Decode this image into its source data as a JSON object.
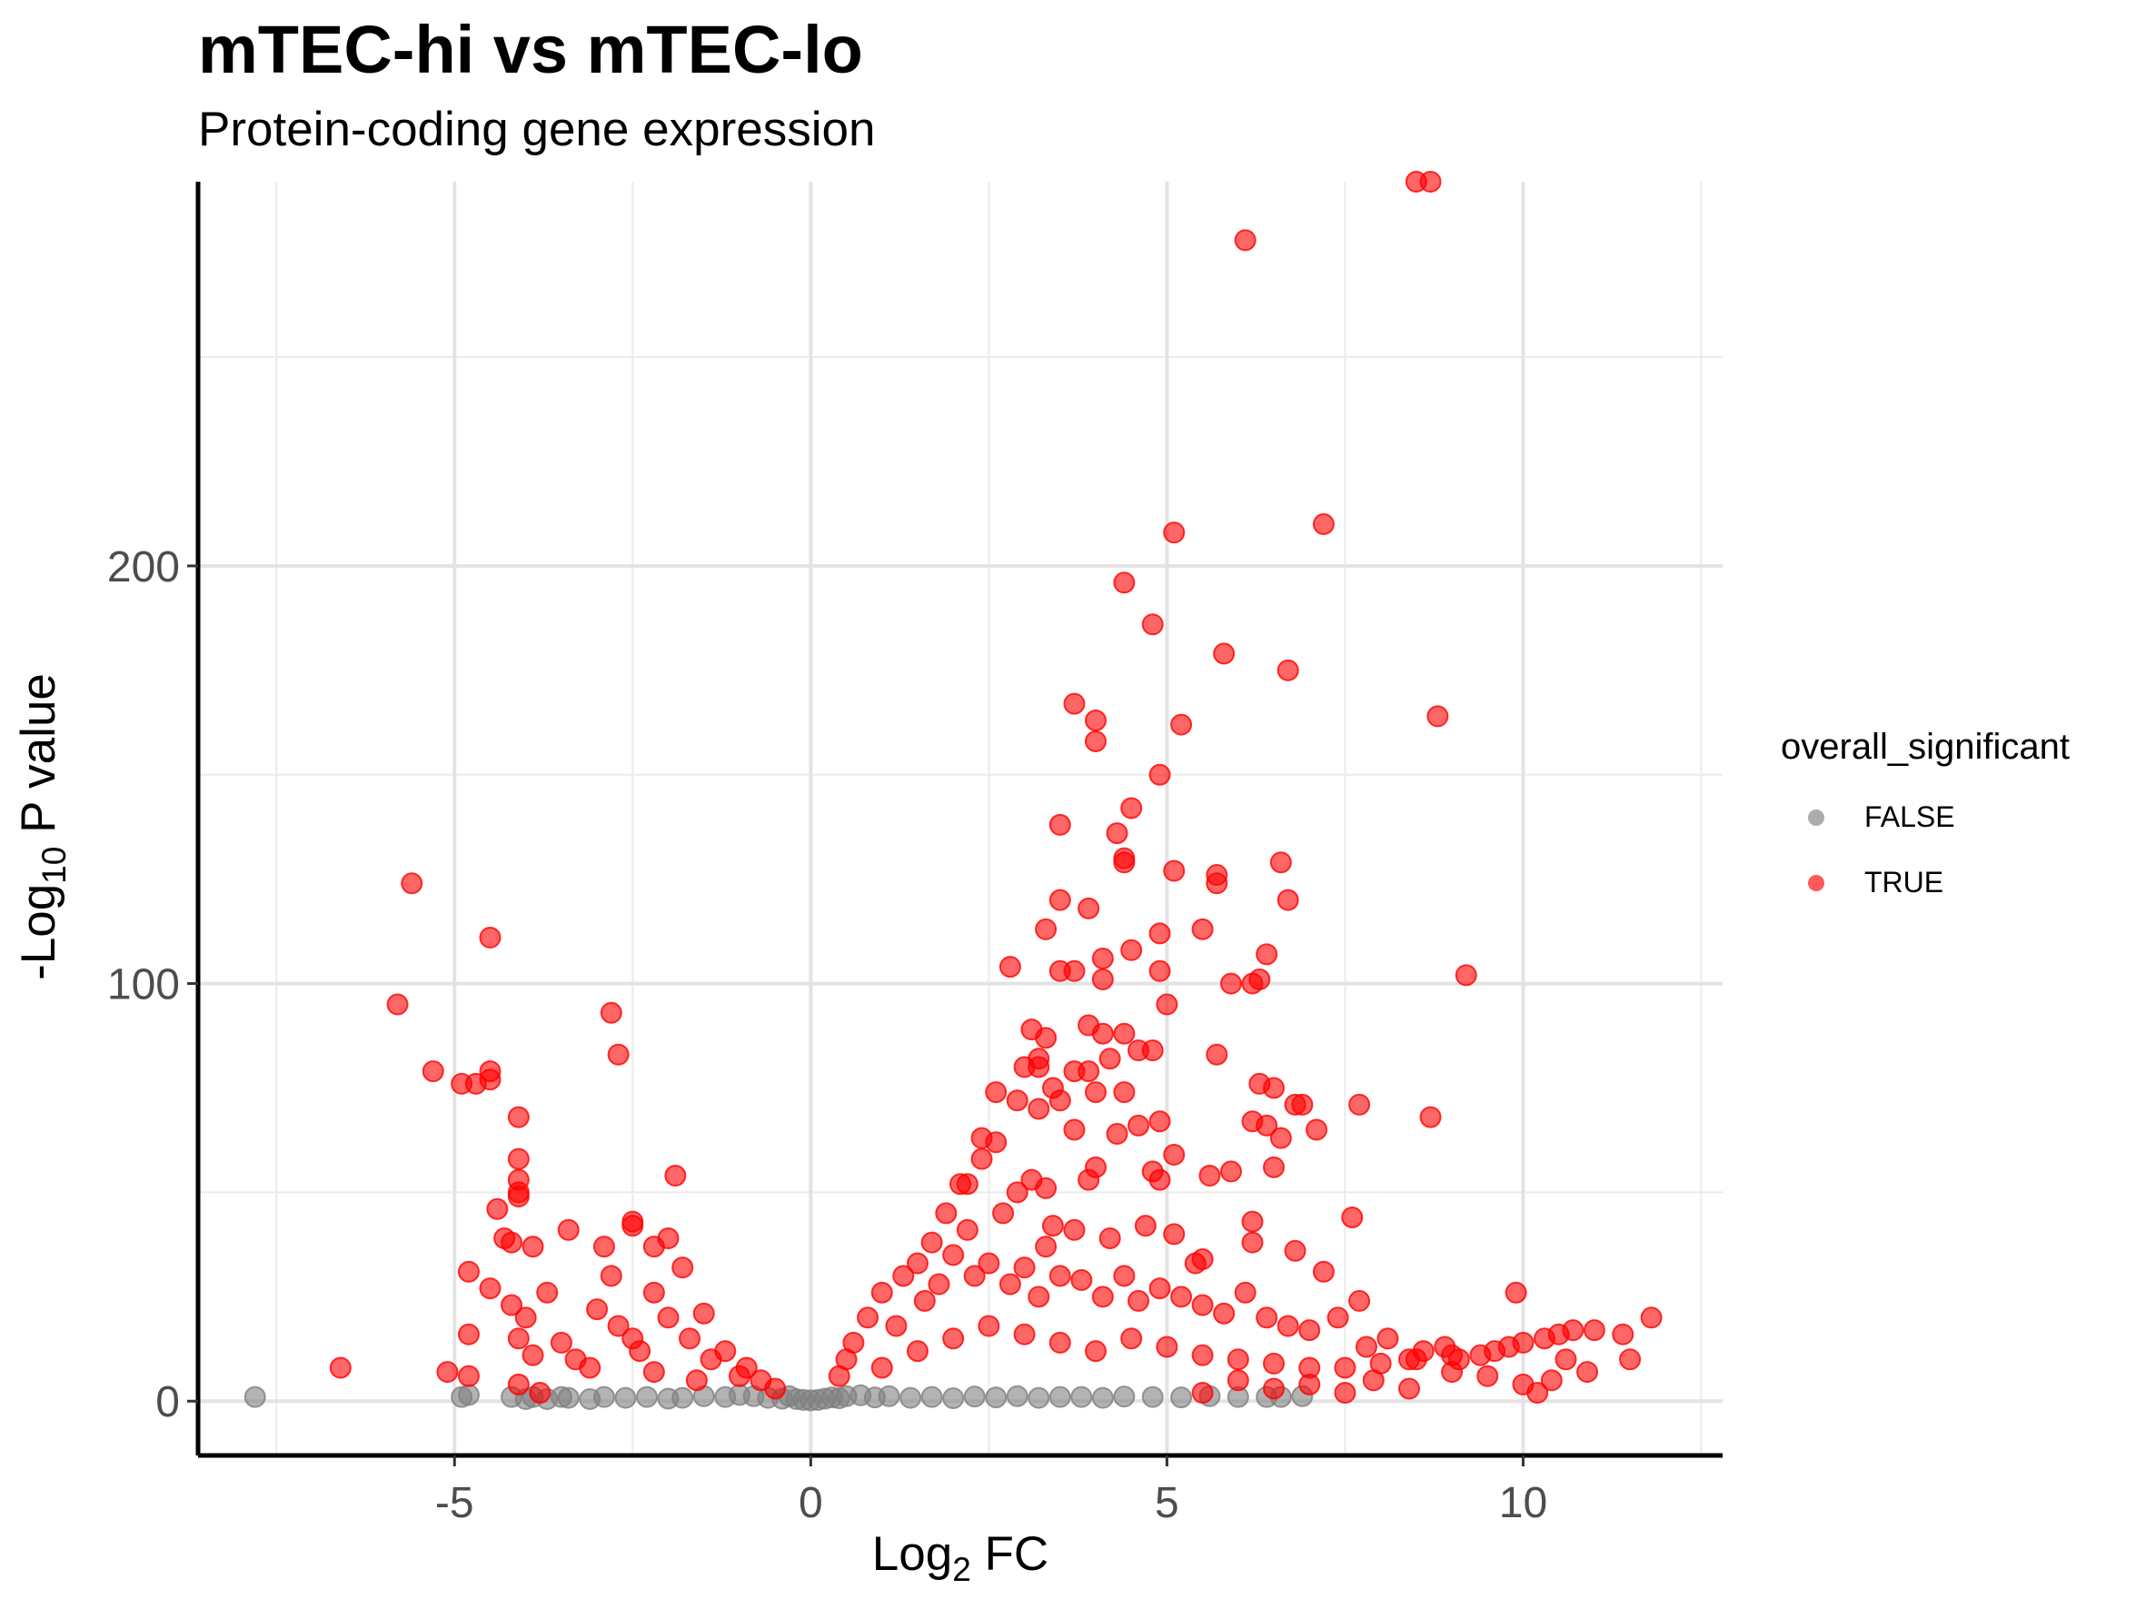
{
  "chart_data": {
    "type": "scatter",
    "title": "mTEC-hi vs mTEC-lo",
    "subtitle": "Protein-coding gene expression",
    "xlabel": "Log2 FC",
    "xlabel_main": "Log",
    "xlabel_sub": "2",
    "xlabel_rest": " FC",
    "ylabel": "-Log10 P value",
    "ylabel_main": "-Log",
    "ylabel_sub": "10",
    "ylabel_rest": " P value",
    "xlim": [
      -8.6,
      12.8
    ],
    "ylim": [
      -13,
      292
    ],
    "x_ticks": [
      -5,
      0,
      5,
      10
    ],
    "x_tick_labels": [
      "-5",
      "0",
      "5",
      "10"
    ],
    "y_ticks": [
      0,
      100,
      200
    ],
    "y_tick_labels": [
      "0",
      "100",
      "200"
    ],
    "grid": true,
    "legend": {
      "title": "overall_significant",
      "position": "right",
      "entries": [
        {
          "label": "FALSE",
          "color": "#808080"
        },
        {
          "label": "TRUE",
          "color": "#ff0000"
        }
      ]
    },
    "series": [
      {
        "name": "FALSE",
        "color": "#808080",
        "points": [
          [
            -7.8,
            1
          ],
          [
            -4.9,
            1
          ],
          [
            -4.8,
            1.5
          ],
          [
            -4.2,
            1
          ],
          [
            -4.0,
            0.5
          ],
          [
            -3.9,
            1
          ],
          [
            -3.7,
            0.5
          ],
          [
            -3.5,
            1
          ],
          [
            -3.4,
            0.8
          ],
          [
            -3.1,
            0.5
          ],
          [
            -2.9,
            1
          ],
          [
            -2.6,
            0.8
          ],
          [
            -2.3,
            1
          ],
          [
            -2.0,
            0.6
          ],
          [
            -1.8,
            0.8
          ],
          [
            -1.5,
            1.2
          ],
          [
            -1.2,
            1.0
          ],
          [
            -1.0,
            1.5
          ],
          [
            -0.8,
            1.2
          ],
          [
            -0.6,
            0.8
          ],
          [
            -0.4,
            0.6
          ],
          [
            -0.3,
            1.2
          ],
          [
            -0.2,
            0.5
          ],
          [
            -0.1,
            0.3
          ],
          [
            0.0,
            0.2
          ],
          [
            0.1,
            0.3
          ],
          [
            0.2,
            0.6
          ],
          [
            0.3,
            0.9
          ],
          [
            0.4,
            0.7
          ],
          [
            0.5,
            1.2
          ],
          [
            0.7,
            1.4
          ],
          [
            0.9,
            0.9
          ],
          [
            1.1,
            1.2
          ],
          [
            1.4,
            0.8
          ],
          [
            1.7,
            1.0
          ],
          [
            2.0,
            0.7
          ],
          [
            2.3,
            1.1
          ],
          [
            2.6,
            0.9
          ],
          [
            2.9,
            1.2
          ],
          [
            3.2,
            0.8
          ],
          [
            3.5,
            1.0
          ],
          [
            3.8,
            1.0
          ],
          [
            4.1,
            0.8
          ],
          [
            4.4,
            1.1
          ],
          [
            4.8,
            1.0
          ],
          [
            5.2,
            0.9
          ],
          [
            5.6,
            1.2
          ],
          [
            6.0,
            1.0
          ],
          [
            6.4,
            1.0
          ],
          [
            6.6,
            1.0
          ],
          [
            6.9,
            1.2
          ]
        ]
      },
      {
        "name": "TRUE",
        "color": "#ff0000",
        "points": [
          [
            8.5,
            292
          ],
          [
            8.7,
            292
          ],
          [
            6.1,
            278
          ],
          [
            7.2,
            210
          ],
          [
            5.1,
            208
          ],
          [
            4.4,
            196
          ],
          [
            4.8,
            186
          ],
          [
            5.8,
            179
          ],
          [
            6.7,
            175
          ],
          [
            3.7,
            167
          ],
          [
            8.8,
            164
          ],
          [
            4.0,
            163
          ],
          [
            5.2,
            162
          ],
          [
            4.0,
            158
          ],
          [
            4.9,
            150
          ],
          [
            4.5,
            142
          ],
          [
            3.5,
            138
          ],
          [
            4.3,
            136
          ],
          [
            4.4,
            130
          ],
          [
            4.4,
            129
          ],
          [
            6.6,
            129
          ],
          [
            5.1,
            127
          ],
          [
            5.7,
            126
          ],
          [
            5.7,
            124
          ],
          [
            6.7,
            120
          ],
          [
            3.5,
            120
          ],
          [
            3.9,
            118
          ],
          [
            3.3,
            113
          ],
          [
            5.5,
            113
          ],
          [
            4.9,
            112
          ],
          [
            4.5,
            108
          ],
          [
            6.4,
            107
          ],
          [
            4.1,
            106
          ],
          [
            2.8,
            104
          ],
          [
            3.5,
            103
          ],
          [
            3.7,
            103
          ],
          [
            4.9,
            103
          ],
          [
            9.2,
            102
          ],
          [
            6.3,
            101
          ],
          [
            6.2,
            100
          ],
          [
            5.9,
            100
          ],
          [
            4.1,
            101
          ],
          [
            -5.6,
            124
          ],
          [
            -4.5,
            111
          ],
          [
            -5.8,
            95
          ],
          [
            -2.8,
            93
          ],
          [
            -2.7,
            83
          ],
          [
            -5.3,
            79
          ],
          [
            -4.5,
            79
          ],
          [
            -4.5,
            77
          ],
          [
            -4.9,
            76
          ],
          [
            -4.7,
            76
          ],
          [
            -4.1,
            68
          ],
          [
            -4.1,
            58
          ],
          [
            -4.1,
            53
          ],
          [
            -4.1,
            50
          ],
          [
            -4.1,
            49
          ],
          [
            -1.9,
            54
          ],
          [
            -4.4,
            46
          ],
          [
            -3.4,
            41
          ],
          [
            -2.5,
            43
          ],
          [
            -2.5,
            42
          ],
          [
            -4.3,
            39
          ],
          [
            -4.2,
            38
          ],
          [
            -3.9,
            37
          ],
          [
            -2.0,
            39
          ],
          [
            -2.2,
            37
          ],
          [
            -2.9,
            37
          ],
          [
            -4.8,
            31
          ],
          [
            -4.5,
            27
          ],
          [
            -3.7,
            26
          ],
          [
            -4.2,
            23
          ],
          [
            -4.0,
            20
          ],
          [
            -4.8,
            16
          ],
          [
            -4.1,
            15
          ],
          [
            -6.6,
            8
          ],
          [
            -5.1,
            7
          ],
          [
            -4.8,
            6
          ],
          [
            -4.1,
            4
          ],
          [
            -3.8,
            2
          ],
          [
            -3.3,
            10
          ],
          [
            -3.0,
            22
          ],
          [
            -2.8,
            30
          ],
          [
            -2.5,
            15
          ],
          [
            -2.2,
            26
          ],
          [
            -1.8,
            32
          ],
          [
            -1.5,
            21
          ],
          [
            -1.2,
            12
          ],
          [
            -0.9,
            8
          ],
          [
            -0.7,
            5
          ],
          [
            -0.5,
            3
          ],
          [
            3.1,
            89
          ],
          [
            3.3,
            87
          ],
          [
            3.9,
            90
          ],
          [
            4.1,
            88
          ],
          [
            4.4,
            88
          ],
          [
            4.8,
            84
          ],
          [
            4.6,
            84
          ],
          [
            3.2,
            82
          ],
          [
            3.2,
            80
          ],
          [
            3.0,
            80
          ],
          [
            3.4,
            75
          ],
          [
            3.9,
            79
          ],
          [
            3.7,
            79
          ],
          [
            4.2,
            82
          ],
          [
            4.4,
            74
          ],
          [
            4.0,
            74
          ],
          [
            2.6,
            74
          ],
          [
            2.9,
            72
          ],
          [
            5.7,
            83
          ],
          [
            5.0,
            95
          ],
          [
            6.3,
            76
          ],
          [
            6.5,
            75
          ],
          [
            6.8,
            71
          ],
          [
            7.1,
            65
          ],
          [
            6.9,
            71
          ],
          [
            7.7,
            71
          ],
          [
            8.7,
            68
          ],
          [
            6.2,
            67
          ],
          [
            6.4,
            66
          ],
          [
            6.6,
            63
          ],
          [
            6.5,
            56
          ],
          [
            5.6,
            54
          ],
          [
            5.9,
            55
          ],
          [
            3.5,
            72
          ],
          [
            3.2,
            70
          ],
          [
            4.9,
            67
          ],
          [
            4.6,
            66
          ],
          [
            4.3,
            64
          ],
          [
            3.7,
            65
          ],
          [
            2.4,
            63
          ],
          [
            2.6,
            62
          ],
          [
            2.4,
            58
          ],
          [
            2.2,
            52
          ],
          [
            2.1,
            52
          ],
          [
            5.1,
            59
          ],
          [
            4.9,
            53
          ],
          [
            4.8,
            55
          ],
          [
            4.0,
            56
          ],
          [
            3.9,
            53
          ],
          [
            3.1,
            53
          ],
          [
            3.3,
            51
          ],
          [
            2.9,
            50
          ],
          [
            7.6,
            44
          ],
          [
            6.2,
            43
          ],
          [
            6.8,
            36
          ],
          [
            6.2,
            38
          ],
          [
            5.5,
            34
          ],
          [
            5.4,
            33
          ],
          [
            5.1,
            40
          ],
          [
            4.7,
            42
          ],
          [
            4.2,
            39
          ],
          [
            3.7,
            41
          ],
          [
            3.4,
            42
          ],
          [
            3.3,
            37
          ],
          [
            2.7,
            45
          ],
          [
            1.9,
            45
          ],
          [
            2.2,
            41
          ],
          [
            1.7,
            38
          ],
          [
            1.5,
            33
          ],
          [
            1.3,
            30
          ],
          [
            1.0,
            26
          ],
          [
            0.8,
            20
          ],
          [
            0.6,
            14
          ],
          [
            0.5,
            10
          ],
          [
            0.4,
            6
          ],
          [
            1.2,
            18
          ],
          [
            1.6,
            24
          ],
          [
            1.8,
            28
          ],
          [
            2.0,
            35
          ],
          [
            2.3,
            30
          ],
          [
            2.5,
            33
          ],
          [
            2.8,
            28
          ],
          [
            3.0,
            32
          ],
          [
            3.2,
            25
          ],
          [
            3.5,
            30
          ],
          [
            3.8,
            29
          ],
          [
            4.1,
            25
          ],
          [
            4.4,
            30
          ],
          [
            4.6,
            24
          ],
          [
            4.9,
            27
          ],
          [
            5.2,
            25
          ],
          [
            5.5,
            23
          ],
          [
            5.8,
            21
          ],
          [
            6.1,
            26
          ],
          [
            6.4,
            20
          ],
          [
            6.7,
            18
          ],
          [
            7.0,
            17
          ],
          [
            7.2,
            31
          ],
          [
            7.4,
            20
          ],
          [
            7.7,
            24
          ],
          [
            7.8,
            13
          ],
          [
            8.1,
            15
          ],
          [
            8.4,
            10
          ],
          [
            8.6,
            12
          ],
          [
            8.9,
            13
          ],
          [
            9.1,
            10
          ],
          [
            9.4,
            11
          ],
          [
            9.6,
            12
          ],
          [
            9.8,
            13
          ],
          [
            10.0,
            14
          ],
          [
            9.9,
            26
          ],
          [
            10.3,
            15
          ],
          [
            10.5,
            16
          ],
          [
            10.7,
            17
          ],
          [
            11.0,
            17
          ],
          [
            11.4,
            16
          ],
          [
            11.8,
            20
          ],
          [
            11.5,
            10
          ],
          [
            10.9,
            7
          ],
          [
            10.6,
            10
          ],
          [
            10.4,
            5
          ],
          [
            10.0,
            4
          ],
          [
            10.2,
            2
          ],
          [
            9.5,
            6
          ],
          [
            9.0,
            7
          ],
          [
            8.4,
            3
          ],
          [
            7.9,
            5
          ],
          [
            7.5,
            2
          ],
          [
            7.0,
            4
          ],
          [
            6.5,
            3
          ],
          [
            6.0,
            5
          ],
          [
            5.5,
            2
          ],
          [
            1.0,
            8
          ],
          [
            1.5,
            12
          ],
          [
            2.0,
            15
          ],
          [
            2.5,
            18
          ],
          [
            3.0,
            16
          ],
          [
            3.5,
            14
          ],
          [
            4.0,
            12
          ],
          [
            4.5,
            15
          ],
          [
            5.0,
            13
          ],
          [
            5.5,
            11
          ],
          [
            6.0,
            10
          ],
          [
            6.5,
            9
          ],
          [
            7.0,
            8
          ],
          [
            7.5,
            8
          ],
          [
            8.0,
            9
          ],
          [
            8.5,
            10
          ],
          [
            9.0,
            11
          ],
          [
            -1.0,
            6
          ],
          [
            -1.4,
            10
          ],
          [
            -1.7,
            15
          ],
          [
            -2.0,
            20
          ],
          [
            -2.4,
            12
          ],
          [
            -2.7,
            18
          ],
          [
            -3.1,
            8
          ],
          [
            -3.5,
            14
          ],
          [
            -3.9,
            11
          ],
          [
            -2.2,
            7
          ],
          [
            -1.6,
            5
          ]
        ]
      }
    ]
  }
}
